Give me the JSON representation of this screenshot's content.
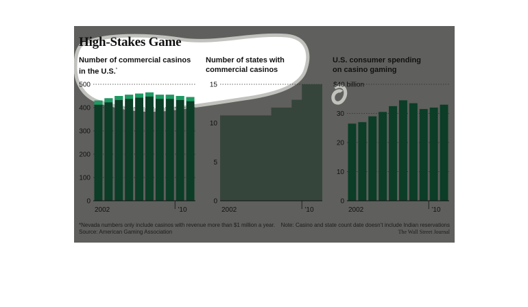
{
  "title": "High-Stakes Game",
  "colors": {
    "background": "#5f5f5d",
    "bar_dark": "#0b3d27",
    "bar_highlight": "#1e9a63",
    "area_fill": "#36453b",
    "text": "#111111",
    "highlight_blob_fill": "#ffffff",
    "highlight_blob_stroke": "#c1c1bd"
  },
  "chart_data": [
    {
      "type": "bar",
      "title": "Number of commercial casinos",
      "title_line2": "in the U.S.",
      "footnote_marker": "*",
      "categories": [
        "2002",
        "2003",
        "2004",
        "2005",
        "2006",
        "2007",
        "2008",
        "2009",
        "2010",
        "2011"
      ],
      "values": [
        430,
        440,
        450,
        455,
        460,
        465,
        455,
        455,
        450,
        445
      ],
      "xlabel": "",
      "ylabel": "",
      "ylim": [
        0,
        500
      ],
      "yticks": [
        0,
        100,
        200,
        300,
        400,
        500
      ],
      "xtick_labels": [
        {
          "category": "2002",
          "label": "2002"
        },
        {
          "category": "2010",
          "label": "’10"
        }
      ],
      "grid": true
    },
    {
      "type": "area",
      "title": "Number of states with",
      "title_line2": "commercial casinos",
      "categories": [
        "2002",
        "2003",
        "2004",
        "2005",
        "2006",
        "2007",
        "2008",
        "2009",
        "2010",
        "2011"
      ],
      "values": [
        11,
        11,
        11,
        11,
        11,
        12,
        12,
        13,
        15,
        15
      ],
      "xlabel": "",
      "ylabel": "",
      "ylim": [
        0,
        15
      ],
      "yticks": [
        0,
        5,
        10,
        15
      ],
      "xtick_labels": [
        {
          "category": "2002",
          "label": "2002"
        },
        {
          "category": "2010",
          "label": "’10"
        }
      ],
      "grid": true
    },
    {
      "type": "bar",
      "title": "U.S. consumer spending",
      "title_line2": "on casino gaming",
      "categories": [
        "2002",
        "2003",
        "2004",
        "2005",
        "2006",
        "2007",
        "2008",
        "2009",
        "2010",
        "2011"
      ],
      "values": [
        26.5,
        27.0,
        29.0,
        30.5,
        32.5,
        34.5,
        33.5,
        31.5,
        32.0,
        33.0
      ],
      "xlabel": "",
      "ylabel": "",
      "ylim": [
        0,
        40
      ],
      "yticks": [
        0,
        10,
        20,
        30,
        40
      ],
      "ytick_labels": [
        "0",
        "10",
        "20",
        "30",
        "$40 billion"
      ],
      "xtick_labels": [
        {
          "category": "2002",
          "label": "2002"
        },
        {
          "category": "2010",
          "label": "’10"
        }
      ],
      "grid": true
    }
  ],
  "notes": {
    "footnote": "*Nevada numbers only include casinos with revenue more than $1 million a year.",
    "source": "Source: American Gaming Association",
    "note": "Note: Casino and state count date doesn’t include Indian reservations",
    "credit": "The Wall Street Journal"
  }
}
